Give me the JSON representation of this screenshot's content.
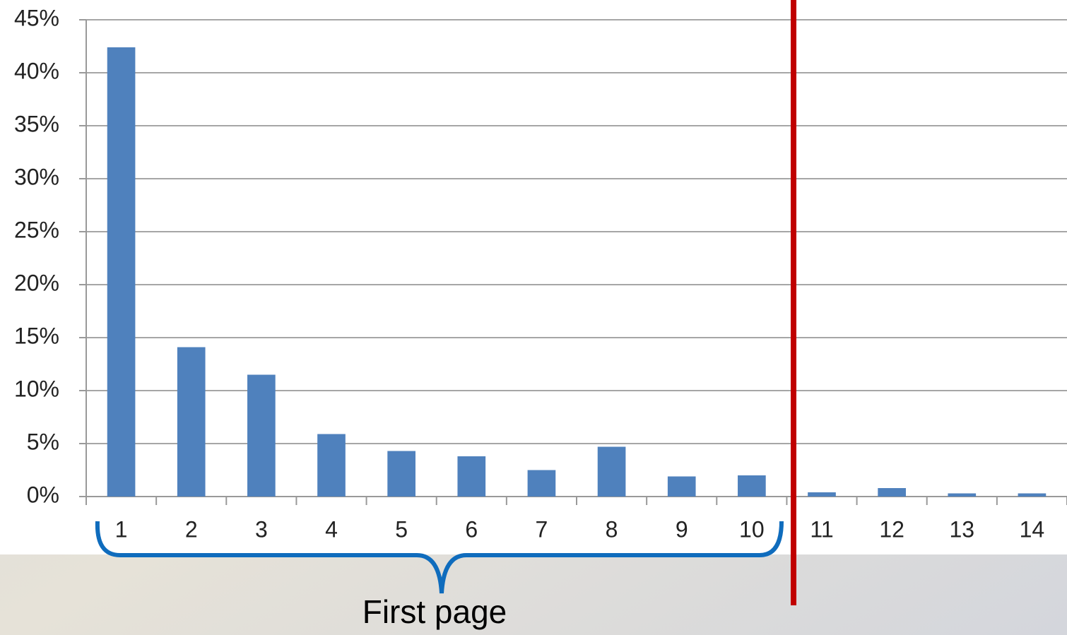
{
  "chart_data": {
    "type": "bar",
    "categories": [
      "1",
      "2",
      "3",
      "4",
      "5",
      "6",
      "7",
      "8",
      "9",
      "10",
      "11",
      "12",
      "13",
      "14"
    ],
    "values": [
      42.4,
      14.1,
      11.5,
      5.9,
      4.3,
      3.8,
      2.5,
      4.7,
      1.9,
      2.0,
      0.4,
      0.8,
      0.3,
      0.3
    ],
    "color": "#4f81bd",
    "ylim": [
      0,
      45
    ],
    "yticks": [
      {
        "value": 0,
        "label": "0%"
      },
      {
        "value": 5,
        "label": "5%"
      },
      {
        "value": 10,
        "label": "10%"
      },
      {
        "value": 15,
        "label": "15%"
      },
      {
        "value": 20,
        "label": "20%"
      },
      {
        "value": 25,
        "label": "25%"
      },
      {
        "value": 30,
        "label": "30%"
      },
      {
        "value": 35,
        "label": "35%"
      },
      {
        "value": 40,
        "label": "40%"
      },
      {
        "value": 45,
        "label": "45%"
      }
    ],
    "grid": true,
    "annotation": "First page"
  }
}
